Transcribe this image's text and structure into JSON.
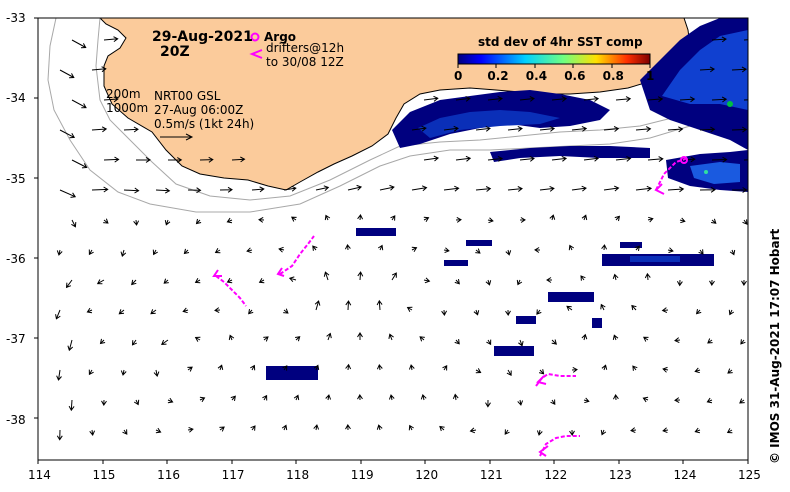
{
  "map": {
    "date": "29-Aug-2021",
    "time": "20Z",
    "argo_label": "Argo",
    "drifters_label": "drifters@12h",
    "drifters_period": "to 30/08 12Z",
    "depth_200": "200m",
    "depth_1000": "1000m",
    "product": "NRT00 GSL",
    "product_time": "27-Aug 06:00Z",
    "vector_scale": "0.5m/s (1kt 24h)",
    "colorbar_title": "std dev of 4hr SST comp",
    "colorbar_ticks": [
      "0",
      "0.2",
      "0.4",
      "0.6",
      "0.8",
      "1"
    ],
    "colorbar_range": [
      0,
      1
    ],
    "credit": "© IMOS 31-Aug-2021 17:07 Hobart",
    "lon_ticks": [
      "114",
      "115",
      "116",
      "117",
      "118",
      "119",
      "120",
      "121",
      "122",
      "123",
      "124",
      "125"
    ],
    "lat_ticks": [
      "-33",
      "-34",
      "-35",
      "-36",
      "-37",
      "-38"
    ],
    "lon_range": [
      114,
      125
    ],
    "lat_range": [
      -38.5,
      -33
    ],
    "colors": {
      "land": "#fbcb9b",
      "sst_low": "#00007f",
      "sst_mid": "#1040d0",
      "drifter": "#ff00ff",
      "isobath": "#a8a8a8"
    }
  }
}
